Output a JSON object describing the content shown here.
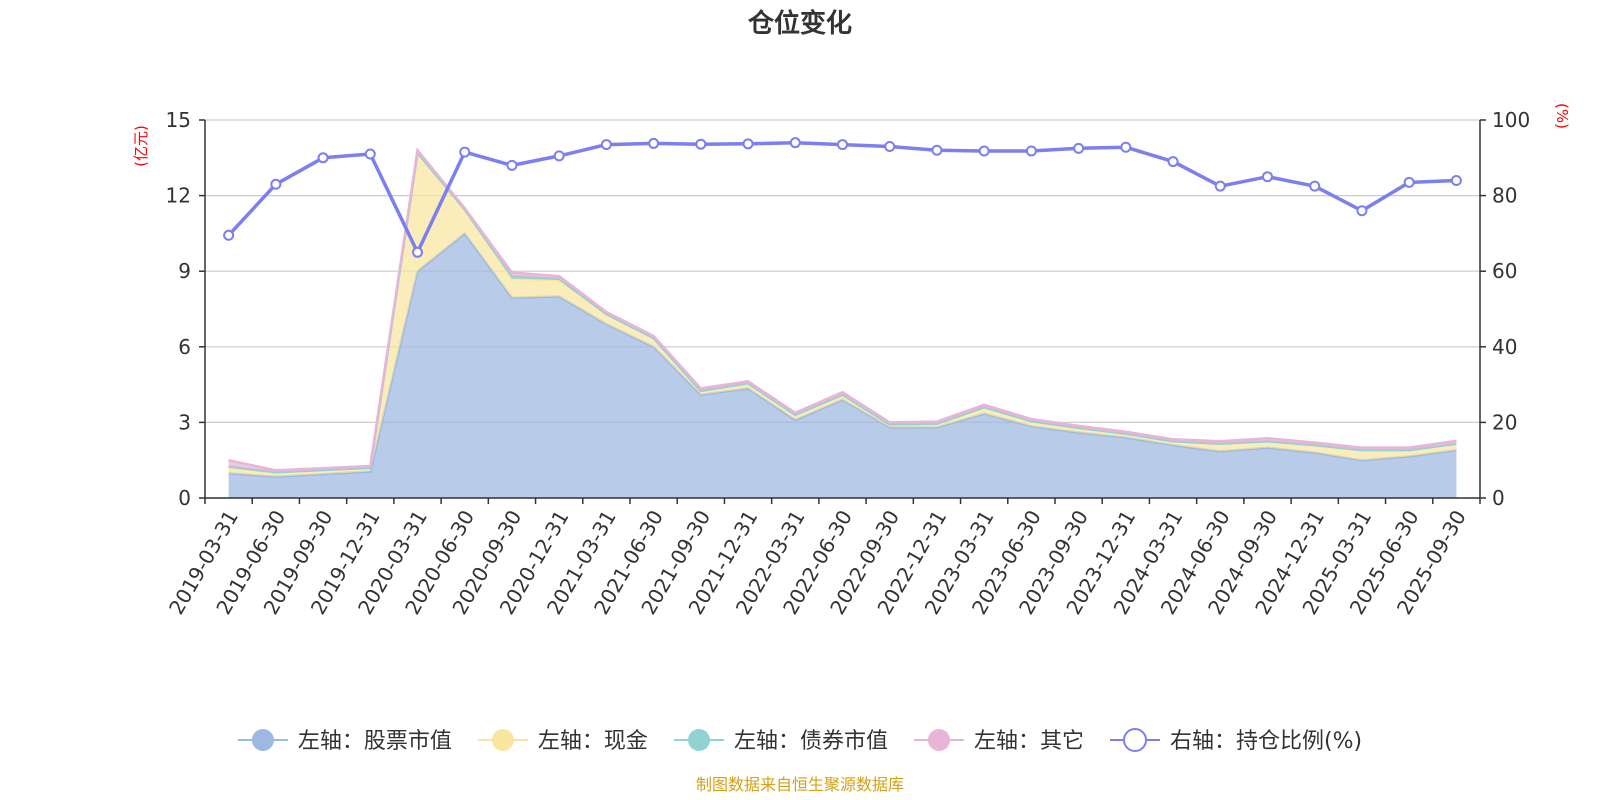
{
  "chart_data": {
    "type": "area",
    "title": "仓位变化",
    "left_unit": "(亿元)",
    "right_unit": "(%)",
    "source": "制图数据来自恒生聚源数据库",
    "x": [
      "2019-03-31",
      "2019-06-30",
      "2019-09-30",
      "2019-12-31",
      "2020-03-31",
      "2020-06-30",
      "2020-09-30",
      "2020-12-31",
      "2021-03-31",
      "2021-06-30",
      "2021-09-30",
      "2021-12-31",
      "2022-03-31",
      "2022-06-30",
      "2022-09-30",
      "2022-12-31",
      "2023-03-31",
      "2023-06-30",
      "2023-09-30",
      "2023-12-31",
      "2024-03-31",
      "2024-06-30",
      "2024-09-30",
      "2024-12-31",
      "2025-03-31",
      "2025-06-30",
      "2025-09-30"
    ],
    "left_ylim": [
      0,
      15
    ],
    "left_ticks": [
      "0",
      "3",
      "6",
      "9",
      "12",
      "15"
    ],
    "right_ylim": [
      0,
      100
    ],
    "right_ticks": [
      "0",
      "20",
      "40",
      "60",
      "80",
      "100"
    ],
    "grid": true,
    "legend_position": "bottom",
    "series": [
      {
        "name": "左轴：股票市值",
        "axis": "left",
        "stack": true,
        "color": "#9db8e2",
        "values": [
          0.98,
          0.85,
          0.95,
          1.05,
          9.0,
          10.5,
          7.95,
          8.0,
          6.9,
          6.0,
          4.1,
          4.35,
          3.1,
          3.9,
          2.8,
          2.8,
          3.35,
          2.85,
          2.6,
          2.4,
          2.1,
          1.85,
          2.0,
          1.8,
          1.5,
          1.65,
          1.9
        ]
      },
      {
        "name": "左轴：现金",
        "axis": "left",
        "stack": true,
        "color": "#f8e6a0",
        "values": [
          0.22,
          0.17,
          0.16,
          0.15,
          4.7,
          0.95,
          0.75,
          0.65,
          0.4,
          0.35,
          0.15,
          0.2,
          0.2,
          0.2,
          0.12,
          0.15,
          0.25,
          0.2,
          0.18,
          0.15,
          0.15,
          0.3,
          0.25,
          0.3,
          0.4,
          0.25,
          0.25
        ]
      },
      {
        "name": "左轴：债券市值",
        "axis": "left",
        "stack": true,
        "color": "#8fd3d3",
        "values": [
          0.05,
          0.0,
          0.0,
          0.0,
          0.0,
          0.0,
          0.1,
          0.05,
          0.0,
          0.0,
          0.0,
          0.0,
          0.0,
          0.0,
          0.0,
          0.0,
          0.0,
          0.0,
          0.0,
          0.0,
          0.0,
          0.0,
          0.0,
          0.0,
          0.0,
          0.0,
          0.0
        ]
      },
      {
        "name": "左轴：其它",
        "axis": "left",
        "stack": true,
        "color": "#e8b4d8",
        "values": [
          0.25,
          0.08,
          0.07,
          0.07,
          0.1,
          0.05,
          0.15,
          0.1,
          0.08,
          0.08,
          0.1,
          0.08,
          0.08,
          0.1,
          0.08,
          0.08,
          0.1,
          0.08,
          0.08,
          0.08,
          0.08,
          0.1,
          0.12,
          0.1,
          0.1,
          0.1,
          0.12
        ]
      },
      {
        "name": "右轴：持仓比例(%)",
        "axis": "right",
        "stack": false,
        "color": "#7b7fef",
        "values": [
          69.5,
          83.0,
          90.0,
          91.0,
          65.0,
          91.5,
          88.0,
          90.5,
          93.5,
          93.8,
          93.6,
          93.7,
          94.0,
          93.5,
          93.0,
          92.0,
          91.8,
          91.8,
          92.5,
          92.8,
          89.0,
          82.5,
          85.0,
          82.5,
          76.0,
          83.5,
          84.0
        ]
      }
    ]
  }
}
